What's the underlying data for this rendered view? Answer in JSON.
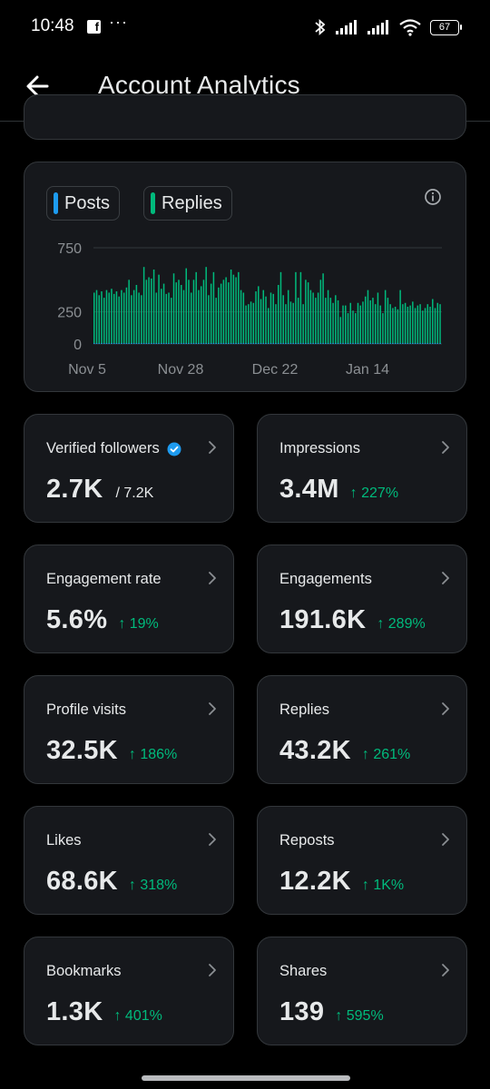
{
  "status": {
    "time": "10:48",
    "app_icon": "facebook-icon",
    "dots": "···",
    "battery": "67"
  },
  "header": {
    "title": "Account Analytics",
    "back_icon": "arrow-left-icon"
  },
  "chart": {
    "legend": [
      {
        "label": "Posts",
        "color": "#1d9bf0"
      },
      {
        "label": "Replies",
        "color": "#00ba7c"
      }
    ]
  },
  "chart_data": {
    "type": "bar",
    "y_ticks": [
      "750",
      "250",
      "0"
    ],
    "x_ticks": [
      "Nov 5",
      "Nov 28",
      "Dec 22",
      "Jan 14"
    ],
    "ylim": [
      0,
      750
    ],
    "grid": true,
    "series": [
      {
        "name": "Replies",
        "color": "#00ba7c",
        "values": [
          400,
          420,
          380,
          410,
          360,
          420,
          400,
          430,
          390,
          410,
          370,
          420,
          400,
          440,
          500,
          380,
          420,
          460,
          400,
          380,
          600,
          500,
          520,
          510,
          580,
          400,
          540,
          430,
          470,
          390,
          400,
          360,
          550,
          480,
          500,
          460,
          420,
          590,
          500,
          400,
          500,
          560,
          420,
          450,
          500,
          600,
          380,
          470,
          560,
          360,
          440,
          470,
          500,
          520,
          480,
          580,
          540,
          520,
          560,
          420,
          400,
          300,
          310,
          330,
          320,
          410,
          450,
          350,
          420,
          370,
          280,
          400,
          390,
          310,
          460,
          560,
          380,
          310,
          420,
          330,
          320,
          560,
          360,
          560,
          310,
          500,
          480,
          420,
          400,
          360,
          400,
          500,
          550,
          360,
          420,
          360,
          320,
          380,
          340,
          210,
          300,
          300,
          240,
          320,
          260,
          240,
          320,
          300,
          330,
          370,
          420,
          340,
          360,
          310,
          400,
          300,
          240,
          420,
          360,
          310,
          280,
          290,
          270,
          420,
          310,
          320,
          290,
          300,
          330,
          280,
          300,
          310,
          260,
          280,
          310,
          290,
          350,
          280,
          320,
          310
        ]
      },
      {
        "name": "Posts",
        "color": "#1d9bf0",
        "values": [
          6,
          6,
          6,
          6,
          6,
          6,
          6,
          6,
          6,
          6,
          6,
          6,
          6,
          6,
          6,
          6,
          6,
          6,
          6,
          6,
          6,
          6,
          6,
          6,
          6,
          6,
          6,
          6,
          6,
          6,
          6,
          6,
          6,
          6,
          6,
          6,
          6,
          6,
          6,
          6,
          6,
          6,
          6,
          6,
          6,
          6,
          6,
          6,
          6,
          6,
          6,
          6,
          6,
          6,
          6,
          6,
          6,
          6,
          6,
          6,
          6,
          6,
          6,
          6,
          6,
          6,
          6,
          6,
          6,
          6,
          6,
          6,
          6,
          6,
          6,
          6,
          6,
          6,
          6,
          6,
          6,
          6,
          6,
          6,
          6,
          6,
          6,
          6,
          6,
          6,
          6,
          6,
          6,
          6,
          6,
          6,
          6,
          6,
          6,
          6,
          6,
          6,
          6,
          6,
          6,
          6,
          6,
          6,
          6,
          6,
          6,
          6,
          6,
          6,
          6,
          6,
          6,
          6,
          6,
          6,
          6,
          6,
          6,
          6,
          6,
          6,
          6,
          6,
          6,
          6,
          6,
          6,
          6,
          6,
          6,
          6,
          6,
          6,
          6,
          6
        ]
      }
    ]
  },
  "stats": [
    {
      "label": "Verified followers",
      "value": "2.7K",
      "sub": "/ 7.2K",
      "change": "",
      "verified": true
    },
    {
      "label": "Impressions",
      "value": "3.4M",
      "sub": "",
      "change": "↑ 227%"
    },
    {
      "label": "Engagement rate",
      "value": "5.6%",
      "sub": "",
      "change": "↑ 19%"
    },
    {
      "label": "Engagements",
      "value": "191.6K",
      "sub": "",
      "change": "↑ 289%"
    },
    {
      "label": "Profile visits",
      "value": "32.5K",
      "sub": "",
      "change": "↑ 186%"
    },
    {
      "label": "Replies",
      "value": "43.2K",
      "sub": "",
      "change": "↑ 261%"
    },
    {
      "label": "Likes",
      "value": "68.6K",
      "sub": "",
      "change": "↑ 318%"
    },
    {
      "label": "Reposts",
      "value": "12.2K",
      "sub": "",
      "change": "↑ 1K%"
    },
    {
      "label": "Bookmarks",
      "value": "1.3K",
      "sub": "",
      "change": "↑ 401%"
    },
    {
      "label": "Shares",
      "value": "139",
      "sub": "",
      "change": "↑ 595%"
    }
  ]
}
